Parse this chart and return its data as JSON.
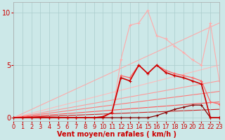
{
  "title": "",
  "xlabel": "Vent moyen/en rafales ( km/h )",
  "x_ticks": [
    0,
    1,
    2,
    3,
    4,
    5,
    6,
    7,
    8,
    9,
    10,
    11,
    12,
    13,
    14,
    15,
    16,
    17,
    18,
    19,
    20,
    21,
    22,
    23
  ],
  "xlim": [
    0,
    23
  ],
  "ylim": [
    -0.3,
    11.0
  ],
  "y_ticks": [
    0,
    5,
    10
  ],
  "background_color": "#cce8e8",
  "grid_color": "#aacccc",
  "series": [
    {
      "x": [
        0,
        23
      ],
      "y": [
        0,
        9.0
      ],
      "color": "#ffaaaa",
      "linewidth": 0.8,
      "marker": "None",
      "zorder": 1
    },
    {
      "x": [
        0,
        23
      ],
      "y": [
        0,
        5.0
      ],
      "color": "#ffbbbb",
      "linewidth": 0.8,
      "marker": "None",
      "zorder": 1
    },
    {
      "x": [
        0,
        23
      ],
      "y": [
        0,
        3.5
      ],
      "color": "#ff9999",
      "linewidth": 0.8,
      "marker": "None",
      "zorder": 1
    },
    {
      "x": [
        0,
        23
      ],
      "y": [
        0,
        2.5
      ],
      "color": "#ff7777",
      "linewidth": 0.8,
      "marker": "None",
      "zorder": 1
    },
    {
      "x": [
        0,
        23
      ],
      "y": [
        0,
        1.5
      ],
      "color": "#ff5555",
      "linewidth": 0.8,
      "marker": "None",
      "zorder": 1
    },
    {
      "x": [
        0,
        23
      ],
      "y": [
        0,
        0.8
      ],
      "color": "#cc2222",
      "linewidth": 0.8,
      "marker": "None",
      "zorder": 1
    },
    {
      "x": [
        0,
        1,
        2,
        3,
        4,
        5,
        6,
        7,
        8,
        9,
        10,
        11,
        12,
        13,
        14,
        15,
        16,
        17,
        18,
        19,
        20,
        21,
        22,
        23
      ],
      "y": [
        0,
        0,
        0,
        0,
        0,
        0,
        0,
        0,
        0,
        0,
        0,
        0,
        5.5,
        8.8,
        9.0,
        10.2,
        7.8,
        7.5,
        6.8,
        6.2,
        5.5,
        5.0,
        9.0,
        3.5
      ],
      "color": "#ffaaaa",
      "linewidth": 0.8,
      "marker": "+",
      "markersize": 3,
      "zorder": 2
    },
    {
      "x": [
        0,
        1,
        2,
        3,
        4,
        5,
        6,
        7,
        8,
        9,
        10,
        11,
        12,
        13,
        14,
        15,
        16,
        17,
        18,
        19,
        20,
        21,
        22,
        23
      ],
      "y": [
        0,
        0,
        0,
        0,
        0,
        0,
        0,
        0,
        0,
        0,
        0,
        0.5,
        4.0,
        3.8,
        5.0,
        4.2,
        5.0,
        4.5,
        4.2,
        4.0,
        3.8,
        3.5,
        1.5,
        1.3
      ],
      "color": "#ff6666",
      "linewidth": 0.9,
      "marker": "+",
      "markersize": 3,
      "zorder": 3
    },
    {
      "x": [
        0,
        1,
        2,
        3,
        4,
        5,
        6,
        7,
        8,
        9,
        10,
        11,
        12,
        13,
        14,
        15,
        16,
        17,
        18,
        19,
        20,
        21,
        22,
        23
      ],
      "y": [
        0,
        0,
        0,
        0,
        0,
        0,
        0,
        0,
        0,
        0,
        0.1,
        0.5,
        3.8,
        3.5,
        5.0,
        4.2,
        5.0,
        4.3,
        4.0,
        3.8,
        3.5,
        3.2,
        0.0,
        0.0
      ],
      "color": "#cc0000",
      "linewidth": 1.2,
      "marker": "+",
      "markersize": 3,
      "zorder": 4
    },
    {
      "x": [
        0,
        1,
        2,
        3,
        4,
        5,
        6,
        7,
        8,
        9,
        10,
        11,
        12,
        13,
        14,
        15,
        16,
        17,
        18,
        19,
        20,
        21,
        22,
        23
      ],
      "y": [
        0,
        0,
        0,
        0,
        0,
        0,
        0,
        0,
        0,
        0,
        0,
        0,
        0,
        0,
        0,
        0,
        0.2,
        0.5,
        0.8,
        1.0,
        1.2,
        1.2,
        0.0,
        0.0
      ],
      "color": "#880000",
      "linewidth": 0.9,
      "marker": "+",
      "markersize": 3,
      "zorder": 3
    }
  ],
  "xlabel_color": "#cc0000",
  "xlabel_fontsize": 7,
  "tick_color": "#cc0000",
  "tick_fontsize": 6
}
